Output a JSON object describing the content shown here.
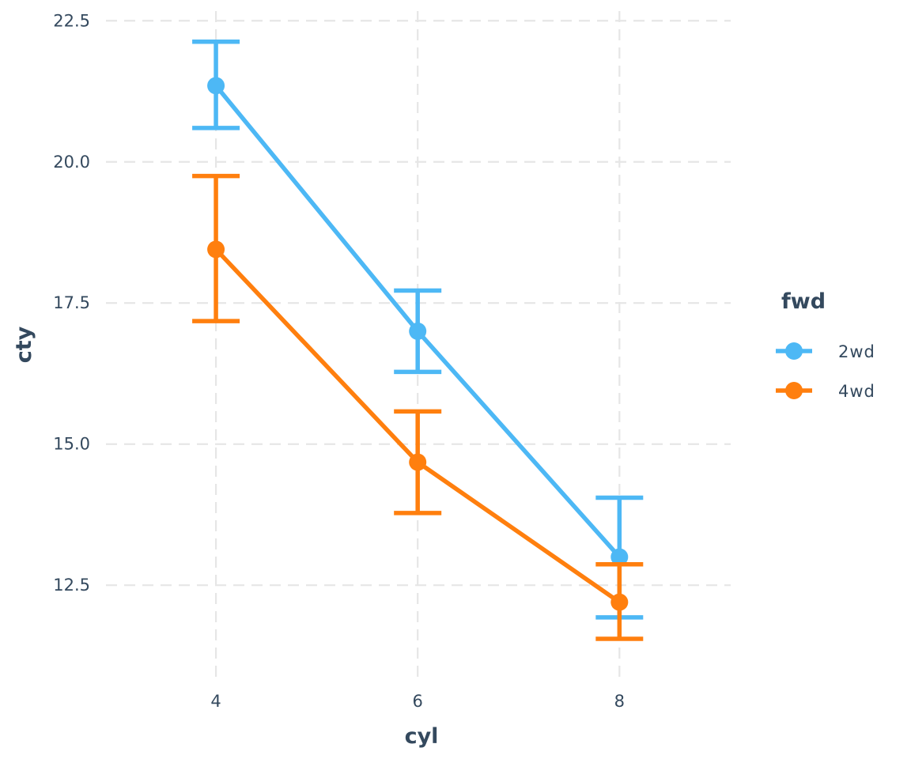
{
  "chart_data": {
    "type": "line",
    "xlabel": "cyl",
    "ylabel": "cty",
    "x": [
      4,
      6,
      8
    ],
    "xlim": [
      2.8,
      9.15
    ],
    "ylim": [
      10.85,
      22.7
    ],
    "x_ticks": [
      4,
      6,
      8
    ],
    "x_tick_labels": [
      "4",
      "6",
      "8"
    ],
    "y_ticks": [
      12.5,
      15.0,
      17.5,
      20.0,
      22.5
    ],
    "y_tick_labels": [
      "12.5",
      "15.0",
      "17.5",
      "20.0",
      "22.5"
    ],
    "grid": true,
    "legend": {
      "title": "fwd",
      "position": "right"
    },
    "series": [
      {
        "name": "2wd",
        "color": "#4db8f5",
        "values": [
          21.35,
          17.0,
          13.0
        ],
        "lower": [
          20.6,
          16.28,
          11.93
        ],
        "upper": [
          22.13,
          17.72,
          14.05
        ]
      },
      {
        "name": "4wd",
        "color": "#ff7f0e",
        "values": [
          18.45,
          14.68,
          12.2
        ],
        "lower": [
          17.18,
          13.78,
          11.55
        ],
        "upper": [
          19.75,
          15.58,
          12.87
        ]
      }
    ]
  }
}
